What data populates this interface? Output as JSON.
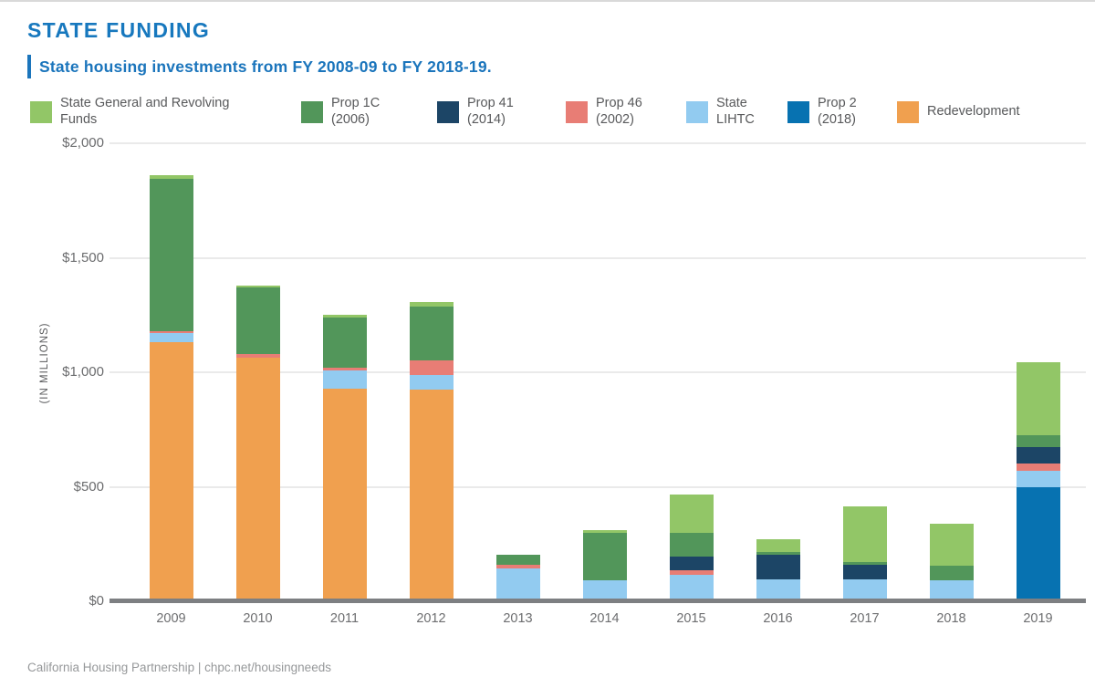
{
  "header": {
    "title": "STATE FUNDING",
    "subtitle": "State housing investments from FY 2008-09 to FY 2018-19."
  },
  "colors": {
    "accent_blue": "#1b75bc",
    "title_blue": "#1778be",
    "axis_gray": "#7d7f82",
    "gridline_gray": "#eaeaea",
    "text_gray": "#58595b"
  },
  "legend": {
    "items": [
      {
        "label": "State General and Revolving\nFunds",
        "color": "#92c667"
      },
      {
        "label": "Prop 1C\n(2006)",
        "color": "#52965a"
      },
      {
        "label": "Prop 41\n(2014)",
        "color": "#1c4566"
      },
      {
        "label": "Prop 46\n(2002)",
        "color": "#e87d75"
      },
      {
        "label": "State\nLIHTC",
        "color": "#92cbf0"
      },
      {
        "label": "Prop 2\n(2018)",
        "color": "#0772b1"
      },
      {
        "label": "Redevelopment",
        "color": "#f0a04f"
      }
    ]
  },
  "chart_data": {
    "type": "bar",
    "stacked": true,
    "title": "State housing investments from FY 2008-09 to FY 2018-19",
    "categories": [
      "2009",
      "2010",
      "2011",
      "2012",
      "2013",
      "2014",
      "2015",
      "2016",
      "2017",
      "2018",
      "2019"
    ],
    "series": [
      {
        "name": "Redevelopment",
        "color": "#f0a04f",
        "values": [
          1130,
          1065,
          930,
          925,
          0,
          0,
          0,
          0,
          0,
          0,
          0
        ]
      },
      {
        "name": "Prop 2 (2018)",
        "color": "#0772b1",
        "values": [
          0,
          0,
          0,
          0,
          0,
          0,
          0,
          0,
          0,
          0,
          500
        ]
      },
      {
        "name": "State LIHTC",
        "color": "#92cbf0",
        "values": [
          40,
          0,
          80,
          65,
          145,
          90,
          115,
          95,
          95,
          90,
          70
        ]
      },
      {
        "name": "Prop 46 (2002)",
        "color": "#e87d75",
        "values": [
          10,
          15,
          10,
          60,
          15,
          0,
          20,
          0,
          0,
          0,
          30
        ]
      },
      {
        "name": "Prop 41 (2014)",
        "color": "#1c4566",
        "values": [
          0,
          0,
          0,
          0,
          0,
          0,
          60,
          110,
          65,
          0,
          75
        ]
      },
      {
        "name": "Prop 1C (2006)",
        "color": "#52965a",
        "values": [
          665,
          290,
          220,
          235,
          45,
          210,
          105,
          10,
          10,
          65,
          50
        ]
      },
      {
        "name": "State General and Revolving Funds",
        "color": "#92c667",
        "values": [
          15,
          10,
          10,
          20,
          0,
          10,
          165,
          55,
          245,
          185,
          320
        ]
      }
    ],
    "ylabel": "(IN MILLIONS)",
    "ylim": [
      0,
      2000
    ],
    "yticks": [
      {
        "value": 2000,
        "label": "$2,000"
      },
      {
        "value": 1500,
        "label": "$1,500"
      },
      {
        "value": 1000,
        "label": "$1,000"
      },
      {
        "value": 500,
        "label": "$500"
      },
      {
        "value": 0,
        "label": "$0"
      }
    ],
    "grid": true,
    "legend_position": "top"
  },
  "footer": {
    "credit": "California Housing Partnership | chpc.net/housingneeds"
  }
}
